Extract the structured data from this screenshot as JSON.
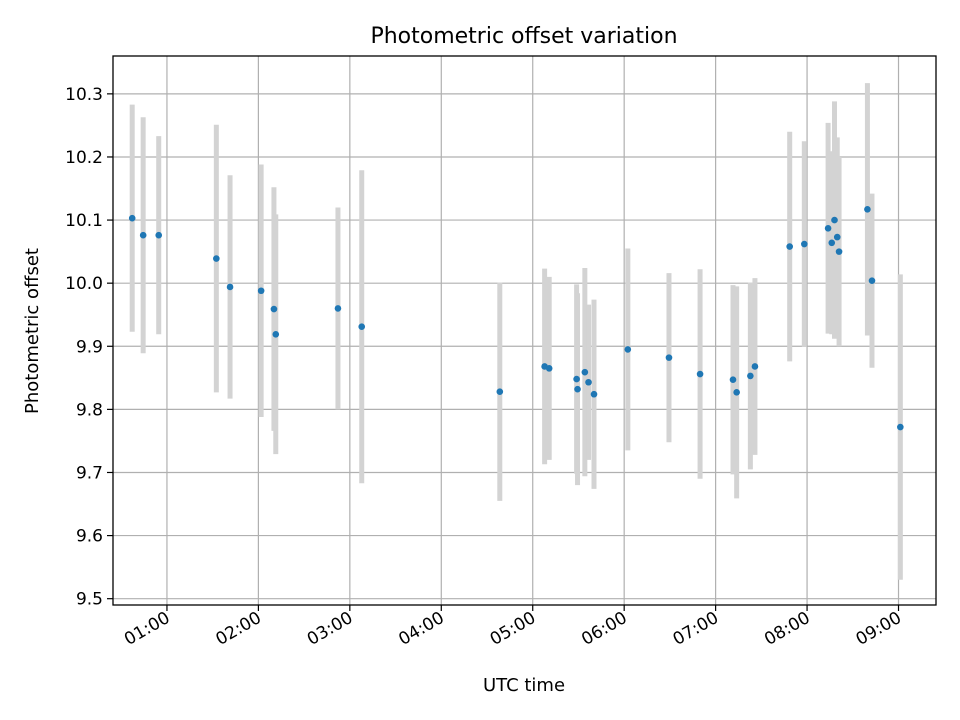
{
  "chart_data": {
    "type": "scatter",
    "title": "Photometric offset variation",
    "xlabel": "UTC time",
    "ylabel": "Photometric offset",
    "xlim": [
      0.41,
      9.41
    ],
    "ylim": [
      9.49,
      10.36
    ],
    "grid": true,
    "x_ticks": [
      {
        "value": 1,
        "label": "01:00"
      },
      {
        "value": 2,
        "label": "02:00"
      },
      {
        "value": 3,
        "label": "03:00"
      },
      {
        "value": 4,
        "label": "04:00"
      },
      {
        "value": 5,
        "label": "05:00"
      },
      {
        "value": 6,
        "label": "06:00"
      },
      {
        "value": 7,
        "label": "07:00"
      },
      {
        "value": 8,
        "label": "08:00"
      },
      {
        "value": 9,
        "label": "09:00"
      }
    ],
    "y_ticks": [
      {
        "value": 9.5,
        "label": "9.5"
      },
      {
        "value": 9.6,
        "label": "9.6"
      },
      {
        "value": 9.7,
        "label": "9.7"
      },
      {
        "value": 9.8,
        "label": "9.8"
      },
      {
        "value": 9.9,
        "label": "9.9"
      },
      {
        "value": 10.0,
        "label": "10.0"
      },
      {
        "value": 10.1,
        "label": "10.1"
      },
      {
        "value": 10.2,
        "label": "10.2"
      },
      {
        "value": 10.3,
        "label": "10.3"
      }
    ],
    "colors": {
      "point": "#1f77b4",
      "errorbar": "#d3d3d3"
    },
    "points": [
      {
        "x": 0.62,
        "y": 10.103,
        "err": 0.18
      },
      {
        "x": 0.74,
        "y": 10.076,
        "err": 0.187
      },
      {
        "x": 0.91,
        "y": 10.076,
        "err": 0.157
      },
      {
        "x": 1.54,
        "y": 10.039,
        "err": 0.212
      },
      {
        "x": 1.69,
        "y": 9.994,
        "err": 0.177
      },
      {
        "x": 2.03,
        "y": 9.988,
        "err": 0.2
      },
      {
        "x": 2.17,
        "y": 9.959,
        "err": 0.193
      },
      {
        "x": 2.19,
        "y": 9.919,
        "err": 0.19
      },
      {
        "x": 2.87,
        "y": 9.96,
        "err": 0.16
      },
      {
        "x": 3.13,
        "y": 9.931,
        "err": 0.248
      },
      {
        "x": 4.64,
        "y": 9.828,
        "err": 0.173
      },
      {
        "x": 5.13,
        "y": 9.868,
        "err": 0.155
      },
      {
        "x": 5.18,
        "y": 9.865,
        "err": 0.145
      },
      {
        "x": 5.48,
        "y": 9.848,
        "err": 0.15
      },
      {
        "x": 5.49,
        "y": 9.832,
        "err": 0.152
      },
      {
        "x": 5.57,
        "y": 9.859,
        "err": 0.165
      },
      {
        "x": 5.61,
        "y": 9.843,
        "err": 0.123
      },
      {
        "x": 5.67,
        "y": 9.824,
        "err": 0.15
      },
      {
        "x": 6.04,
        "y": 9.895,
        "err": 0.16
      },
      {
        "x": 6.49,
        "y": 9.882,
        "err": 0.134
      },
      {
        "x": 6.83,
        "y": 9.856,
        "err": 0.166
      },
      {
        "x": 7.19,
        "y": 9.847,
        "err": 0.15
      },
      {
        "x": 7.23,
        "y": 9.827,
        "err": 0.168
      },
      {
        "x": 7.38,
        "y": 9.853,
        "err": 0.148
      },
      {
        "x": 7.43,
        "y": 9.868,
        "err": 0.14
      },
      {
        "x": 7.81,
        "y": 10.058,
        "err": 0.182
      },
      {
        "x": 7.97,
        "y": 10.062,
        "err": 0.163
      },
      {
        "x": 8.23,
        "y": 10.087,
        "err": 0.167
      },
      {
        "x": 8.27,
        "y": 10.064,
        "err": 0.145
      },
      {
        "x": 8.3,
        "y": 10.1,
        "err": 0.188
      },
      {
        "x": 8.33,
        "y": 10.073,
        "err": 0.158
      },
      {
        "x": 8.35,
        "y": 10.05,
        "err": 0.15
      },
      {
        "x": 8.66,
        "y": 10.117,
        "err": 0.2
      },
      {
        "x": 8.71,
        "y": 10.004,
        "err": 0.138
      },
      {
        "x": 9.02,
        "y": 9.772,
        "err": 0.242
      }
    ]
  }
}
